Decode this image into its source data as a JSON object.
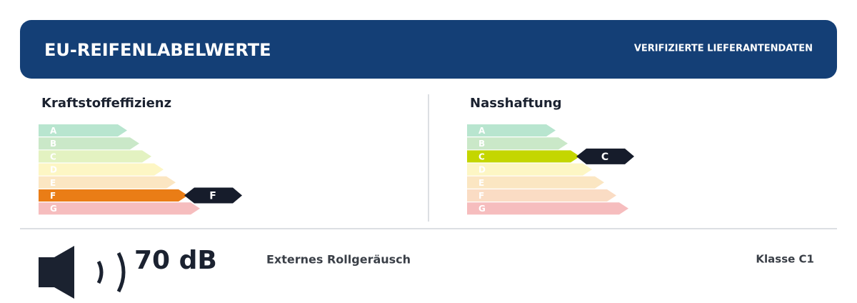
{
  "header": {
    "title": "EU-REIFENLABELWERTE",
    "badge": "VERIFIZIERTE LIEFERANTENDATEN"
  },
  "fuel": {
    "title": "Kraftstoffeffizienz",
    "grades": [
      "A",
      "B",
      "C",
      "D",
      "E",
      "F",
      "G"
    ],
    "rating": "F"
  },
  "wet": {
    "title": "Nasshaftung",
    "grades": [
      "A",
      "B",
      "C",
      "D",
      "E",
      "F",
      "G"
    ],
    "rating": "C"
  },
  "noise": {
    "value": "70 dB",
    "label": "Externes Rollgeräusch",
    "class": "Klasse C1"
  }
}
